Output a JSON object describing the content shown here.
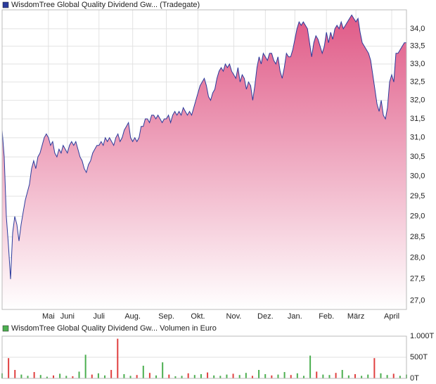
{
  "chart_data": [
    {
      "type": "line",
      "title": "WisdomTree Global Quality Dividend Gw... (Tradegate)",
      "color": "#2b3b9c",
      "fill_color": "#e05a87",
      "log_scale": true,
      "grid": true,
      "values": [
        31.2,
        30.5,
        29.0,
        28.3,
        27.5,
        28.6,
        29.0,
        28.8,
        28.4,
        28.8,
        29.1,
        29.4,
        29.6,
        29.8,
        30.2,
        30.4,
        30.2,
        30.5,
        30.6,
        30.8,
        31.0,
        31.1,
        31.0,
        30.8,
        30.9,
        30.6,
        30.5,
        30.7,
        30.6,
        30.8,
        30.7,
        30.6,
        30.8,
        30.9,
        30.8,
        30.9,
        30.7,
        30.5,
        30.4,
        30.2,
        30.1,
        30.3,
        30.4,
        30.6,
        30.7,
        30.8,
        30.8,
        30.9,
        30.8,
        31.0,
        30.9,
        31.0,
        30.9,
        30.8,
        31.0,
        31.1,
        30.9,
        31.0,
        31.2,
        31.3,
        31.4,
        31.0,
        30.9,
        31.0,
        30.9,
        31.0,
        31.3,
        31.3,
        31.5,
        31.5,
        31.4,
        31.6,
        31.6,
        31.5,
        31.6,
        31.5,
        31.4,
        31.5,
        31.5,
        31.6,
        31.4,
        31.6,
        31.7,
        31.6,
        31.7,
        31.6,
        31.8,
        31.7,
        31.6,
        31.7,
        31.6,
        31.8,
        32.0,
        32.2,
        32.4,
        32.5,
        32.6,
        32.4,
        32.1,
        32.0,
        32.2,
        32.3,
        32.6,
        32.8,
        32.9,
        32.8,
        33.0,
        32.9,
        33.0,
        32.8,
        32.7,
        32.6,
        32.9,
        32.5,
        32.7,
        32.6,
        32.3,
        32.5,
        32.4,
        32.0,
        32.4,
        32.9,
        33.2,
        33.0,
        33.3,
        33.2,
        33.1,
        33.3,
        33.3,
        33.1,
        33.0,
        33.2,
        32.8,
        32.6,
        32.9,
        33.3,
        33.2,
        33.2,
        33.4,
        33.7,
        34.0,
        34.2,
        34.1,
        34.2,
        34.1,
        34.0,
        33.6,
        33.2,
        33.6,
        33.8,
        33.7,
        33.5,
        33.3,
        33.5,
        33.9,
        33.6,
        33.9,
        33.7,
        34.0,
        34.1,
        34.0,
        34.2,
        34.0,
        34.1,
        34.2,
        34.3,
        34.4,
        34.3,
        34.2,
        34.3,
        33.9,
        33.6,
        33.5,
        33.4,
        33.3,
        33.1,
        32.7,
        32.3,
        31.9,
        31.7,
        32.0,
        31.6,
        31.5,
        31.8,
        32.5,
        32.7,
        32.5,
        33.3,
        33.3,
        33.4,
        33.5,
        33.6,
        33.6
      ],
      "xlim": [
        0,
        192
      ],
      "xticks": [
        {
          "value": 22,
          "label": "Mai"
        },
        {
          "value": 31,
          "label": "Juni"
        },
        {
          "value": 46,
          "label": "Juli"
        },
        {
          "value": 62,
          "label": "Aug."
        },
        {
          "value": 78,
          "label": "Sep."
        },
        {
          "value": 93,
          "label": "Okt."
        },
        {
          "value": 110,
          "label": "Nov."
        },
        {
          "value": 125,
          "label": "Dez."
        },
        {
          "value": 139,
          "label": "Jan."
        },
        {
          "value": 154,
          "label": "Feb."
        },
        {
          "value": 168,
          "label": "März"
        },
        {
          "value": 185,
          "label": "April"
        }
      ],
      "ylim": [
        26.8,
        34.55
      ],
      "yticks": [
        {
          "value": 27,
          "label": "27,0"
        },
        {
          "value": 27.5,
          "label": "27,5"
        },
        {
          "value": 28,
          "label": "28,0"
        },
        {
          "value": 28.5,
          "label": "28,5"
        },
        {
          "value": 29,
          "label": "29,0"
        },
        {
          "value": 29.5,
          "label": "29,5"
        },
        {
          "value": 30,
          "label": "30,0"
        },
        {
          "value": 30.5,
          "label": "30,5"
        },
        {
          "value": 31,
          "label": "31,0"
        },
        {
          "value": 31.5,
          "label": "31,5"
        },
        {
          "value": 32,
          "label": "32,0"
        },
        {
          "value": 32.5,
          "label": "32,5"
        },
        {
          "value": 33,
          "label": "33,0"
        },
        {
          "value": 33.5,
          "label": "33,5"
        },
        {
          "value": 34,
          "label": "34,0"
        }
      ]
    },
    {
      "type": "bar",
      "title": "WisdomTree Global Quality Dividend Gw... Volumen in Euro",
      "color": "#4caf50",
      "grid": true,
      "values": [
        120,
        480,
        200,
        90,
        60,
        150,
        80,
        40,
        70,
        110,
        60,
        50,
        160,
        560,
        90,
        120,
        70,
        200,
        940,
        100,
        60,
        80,
        300,
        130,
        70,
        380,
        90,
        50,
        60,
        120,
        80,
        100,
        140,
        70,
        60,
        90,
        110,
        80,
        130,
        60,
        200,
        100,
        70,
        90,
        150,
        80,
        120,
        60,
        540,
        160,
        90,
        80,
        130,
        200,
        70,
        100,
        60,
        90,
        480,
        120,
        80,
        110,
        60,
        90
      ],
      "colors": [
        "#4caf50",
        "#e04040",
        "#e04040",
        "#4caf50",
        "#4caf50",
        "#e04040",
        "#4caf50",
        "#4caf50",
        "#e04040",
        "#4caf50",
        "#4caf50",
        "#e04040",
        "#4caf50",
        "#4caf50",
        "#e04040",
        "#4caf50",
        "#4caf50",
        "#e04040",
        "#e04040",
        "#4caf50",
        "#4caf50",
        "#e04040",
        "#4caf50",
        "#e04040",
        "#4caf50",
        "#4caf50",
        "#e04040",
        "#4caf50",
        "#4caf50",
        "#e04040",
        "#4caf50",
        "#4caf50",
        "#e04040",
        "#4caf50",
        "#4caf50",
        "#4caf50",
        "#e04040",
        "#4caf50",
        "#4caf50",
        "#e04040",
        "#4caf50",
        "#4caf50",
        "#e04040",
        "#4caf50",
        "#4caf50",
        "#e04040",
        "#4caf50",
        "#4caf50",
        "#4caf50",
        "#e04040",
        "#4caf50",
        "#4caf50",
        "#e04040",
        "#4caf50",
        "#4caf50",
        "#e04040",
        "#4caf50",
        "#4caf50",
        "#e04040",
        "#4caf50",
        "#4caf50",
        "#e04040",
        "#4caf50",
        "#4caf50"
      ],
      "xlim": [
        0,
        63
      ],
      "ylim": [
        0,
        1000
      ],
      "yticks": [
        {
          "value": 0,
          "label": "0T"
        },
        {
          "value": 500,
          "label": "500T"
        },
        {
          "value": 1000,
          "label": "1.000T"
        }
      ]
    }
  ]
}
